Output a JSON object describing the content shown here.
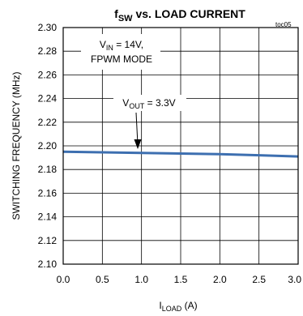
{
  "chart_data": {
    "type": "line",
    "title_main": "f",
    "title_sub": "SW",
    "title_rest": " vs. LOAD CURRENT",
    "figure_id": "toc05",
    "xlabel_main": "I",
    "xlabel_sub": "LOAD",
    "xlabel_unit": " (A)",
    "ylabel": "SWITCHING FREQUENCY (MHz)",
    "xlim": [
      0,
      3
    ],
    "ylim": [
      2.1,
      2.3
    ],
    "x_ticks": [
      "0.0",
      "0.5",
      "1.0",
      "1.5",
      "2.0",
      "2.5",
      "3.0"
    ],
    "y_ticks": [
      "2.10",
      "2.12",
      "2.14",
      "2.16",
      "2.18",
      "2.20",
      "2.22",
      "2.24",
      "2.26",
      "2.28",
      "2.30"
    ],
    "grid": true,
    "series": [
      {
        "color": "#3d6fb0",
        "x": [
          0.0,
          0.5,
          1.0,
          1.5,
          2.0,
          2.5,
          3.0
        ],
        "y": [
          2.195,
          2.1945,
          2.194,
          2.1935,
          2.193,
          2.192,
          2.191
        ]
      }
    ],
    "annotations": {
      "condition_line1_main": "V",
      "condition_line1_sub": "IN",
      "condition_line1_rest": " = 14V,",
      "condition_line2": "FPWM MODE",
      "vout_main": "V",
      "vout_sub": "OUT",
      "vout_rest": " = 3.3V"
    }
  }
}
